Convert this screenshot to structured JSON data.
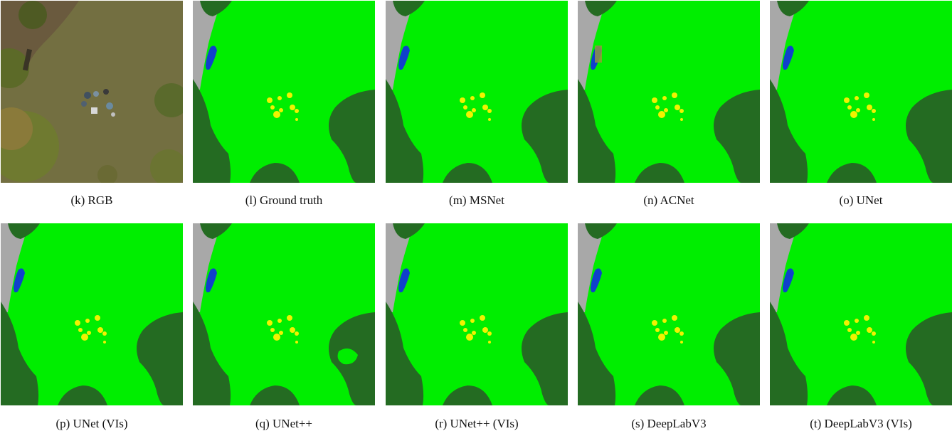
{
  "colors": {
    "low_vegetation": "#00ee00",
    "tree": "#246b22",
    "road": "#a8a8a8",
    "car": "#1040cc",
    "humans": "#f2f200",
    "clutter": "#9a9a3a"
  },
  "panels": [
    {
      "caption": "(k) RGB",
      "kind": "rgb"
    },
    {
      "caption": "(l) Ground truth",
      "kind": "seg",
      "variant": "gt"
    },
    {
      "caption": "(m) MSNet",
      "kind": "seg",
      "variant": "msnet"
    },
    {
      "caption": "(n) ACNet",
      "kind": "seg",
      "variant": "acnet"
    },
    {
      "caption": "(o) UNet",
      "kind": "seg",
      "variant": "unet"
    },
    {
      "caption": "(p) UNet (VIs)",
      "kind": "seg",
      "variant": "unet_vis"
    },
    {
      "caption": "(q) UNet++",
      "kind": "seg",
      "variant": "unetpp"
    },
    {
      "caption": "(r) UNet++ (VIs)",
      "kind": "seg",
      "variant": "unetpp_vis"
    },
    {
      "caption": "(s) DeepLabV3",
      "kind": "seg",
      "variant": "deeplab"
    },
    {
      "caption": "(t) DeepLabV3 (VIs)",
      "kind": "seg",
      "variant": "deeplab_vis"
    }
  ]
}
